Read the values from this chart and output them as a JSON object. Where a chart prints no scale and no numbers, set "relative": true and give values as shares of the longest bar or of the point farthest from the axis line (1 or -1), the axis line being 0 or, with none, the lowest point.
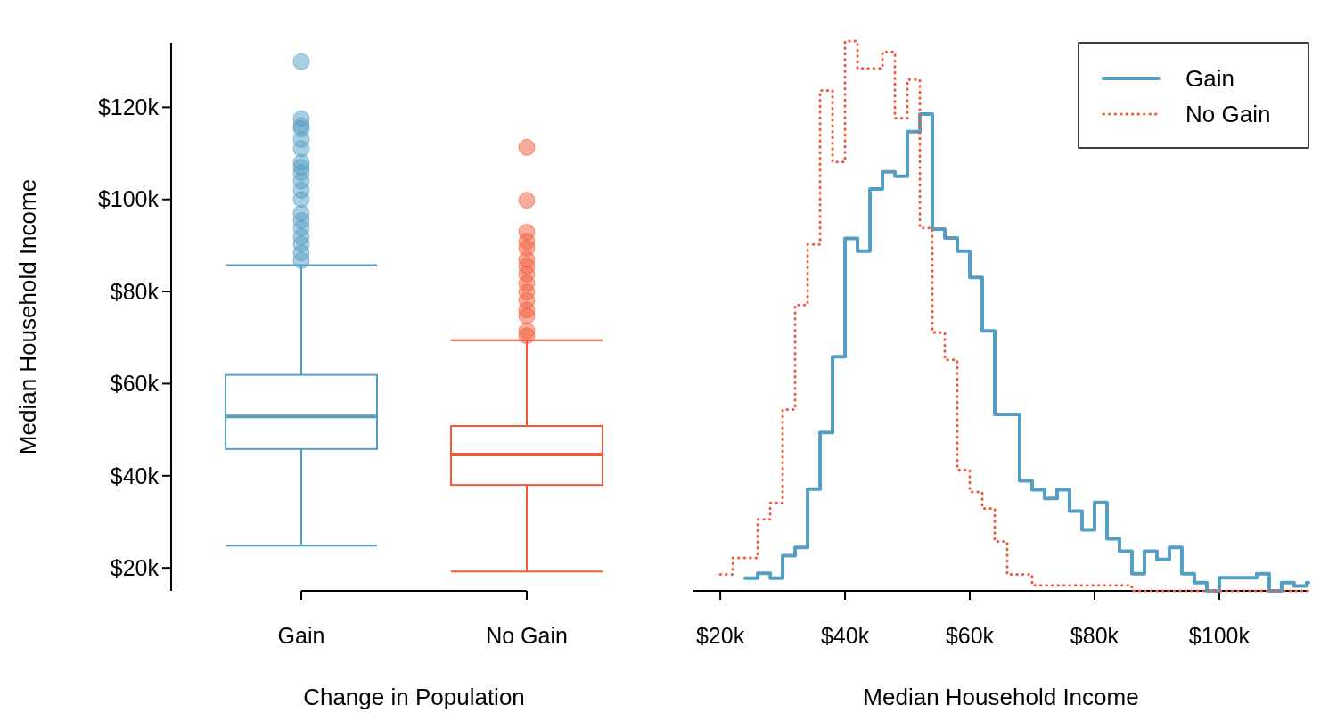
{
  "chart_data": [
    {
      "type": "box",
      "categories": [
        "Gain",
        "No Gain"
      ],
      "colors": [
        "#559ec3",
        "#f15a38"
      ],
      "xlabel": "Change in Population",
      "ylabel": "Median Household Income",
      "ylim": [
        15,
        134
      ],
      "yticks": [
        {
          "value": 20,
          "label": "$20k"
        },
        {
          "value": 40,
          "label": "$40k"
        },
        {
          "value": 60,
          "label": "$60k"
        },
        {
          "value": 80,
          "label": "$80k"
        },
        {
          "value": 100,
          "label": "$100k"
        },
        {
          "value": 120,
          "label": "$120k"
        }
      ],
      "grid": false,
      "boxes": [
        {
          "low": 24.8,
          "q1": 45.8,
          "median": 52.9,
          "q3": 61.9,
          "high": 85.7,
          "outliers": [
            129.9,
            117.5,
            116,
            115.3,
            113,
            111,
            108,
            107,
            105.8,
            104,
            102,
            100,
            97,
            95.4,
            93.8,
            91.9,
            90.3,
            88.4,
            86.7
          ]
        },
        {
          "low": 19.2,
          "q1": 38,
          "median": 44.6,
          "q3": 50.8,
          "high": 69.4,
          "outliers": [
            111.3,
            99.8,
            92.9,
            90.9,
            89.4,
            87,
            85.5,
            83.8,
            81.8,
            79.9,
            78,
            76,
            74.7,
            71.5,
            70.4
          ]
        }
      ]
    },
    {
      "type": "step",
      "relative": true,
      "xlabel": "Median Household Income",
      "xlim": [
        15.7,
        114.3
      ],
      "xticks": [
        {
          "value": 20,
          "label": "$20k"
        },
        {
          "value": 40,
          "label": "$40k"
        },
        {
          "value": 60,
          "label": "$60k"
        },
        {
          "value": 80,
          "label": "$80k"
        },
        {
          "value": 100,
          "label": "$100k"
        }
      ],
      "legend": "top right",
      "marker": "none",
      "grid": false,
      "series": [
        {
          "name": "Gain",
          "color": "#559ec3",
          "line_style": "solid",
          "x": [
            24,
            26,
            28,
            30,
            32,
            34,
            36,
            38,
            40,
            42,
            44,
            46,
            48,
            50,
            52,
            54,
            56,
            58,
            60,
            62,
            64,
            66,
            68,
            70,
            72,
            74,
            76,
            78,
            80,
            82,
            84,
            86,
            88,
            90,
            92,
            94,
            96,
            98,
            100,
            102,
            104,
            106,
            108,
            110,
            112,
            114
          ],
          "values": [
            0.023,
            0.032,
            0.023,
            0.064,
            0.079,
            0.185,
            0.288,
            0.426,
            0.641,
            0.618,
            0.731,
            0.762,
            0.754,
            0.835,
            0.867,
            0.658,
            0.642,
            0.618,
            0.57,
            0.473,
            0.321,
            0.321,
            0.2,
            0.184,
            0.168,
            0.184,
            0.145,
            0.111,
            0.161,
            0.095,
            0.072,
            0.031,
            0.072,
            0.057,
            0.079,
            0.031,
            0.015,
            0,
            0.024,
            0.024,
            0.024,
            0.031,
            0,
            0.015,
            0.009,
            0.015
          ]
        },
        {
          "name": "No Gain",
          "color": "#f15a38",
          "line_style": "dotted",
          "x": [
            20,
            22,
            24,
            26,
            28,
            30,
            32,
            34,
            36,
            38,
            40,
            42,
            44,
            46,
            48,
            50,
            52,
            54,
            56,
            58,
            60,
            62,
            64,
            66,
            68,
            70,
            72,
            74,
            76,
            78,
            80,
            82,
            84,
            86,
            88,
            90,
            92,
            94,
            96,
            98,
            100,
            102,
            104,
            106,
            108,
            110,
            112,
            114
          ],
          "values": [
            0.03,
            0.06,
            0.06,
            0.13,
            0.16,
            0.33,
            0.52,
            0.63,
            0.91,
            0.78,
            1,
            0.95,
            0.95,
            0.98,
            0.86,
            0.93,
            0.66,
            0.47,
            0.42,
            0.22,
            0.18,
            0.15,
            0.09,
            0.03,
            0.03,
            0.01,
            0.01,
            0.01,
            0.01,
            0.01,
            0.01,
            0.01,
            0.01,
            0,
            0,
            0,
            0,
            0,
            0,
            0,
            0,
            0,
            0,
            0,
            0,
            0,
            0,
            0
          ]
        }
      ]
    }
  ]
}
